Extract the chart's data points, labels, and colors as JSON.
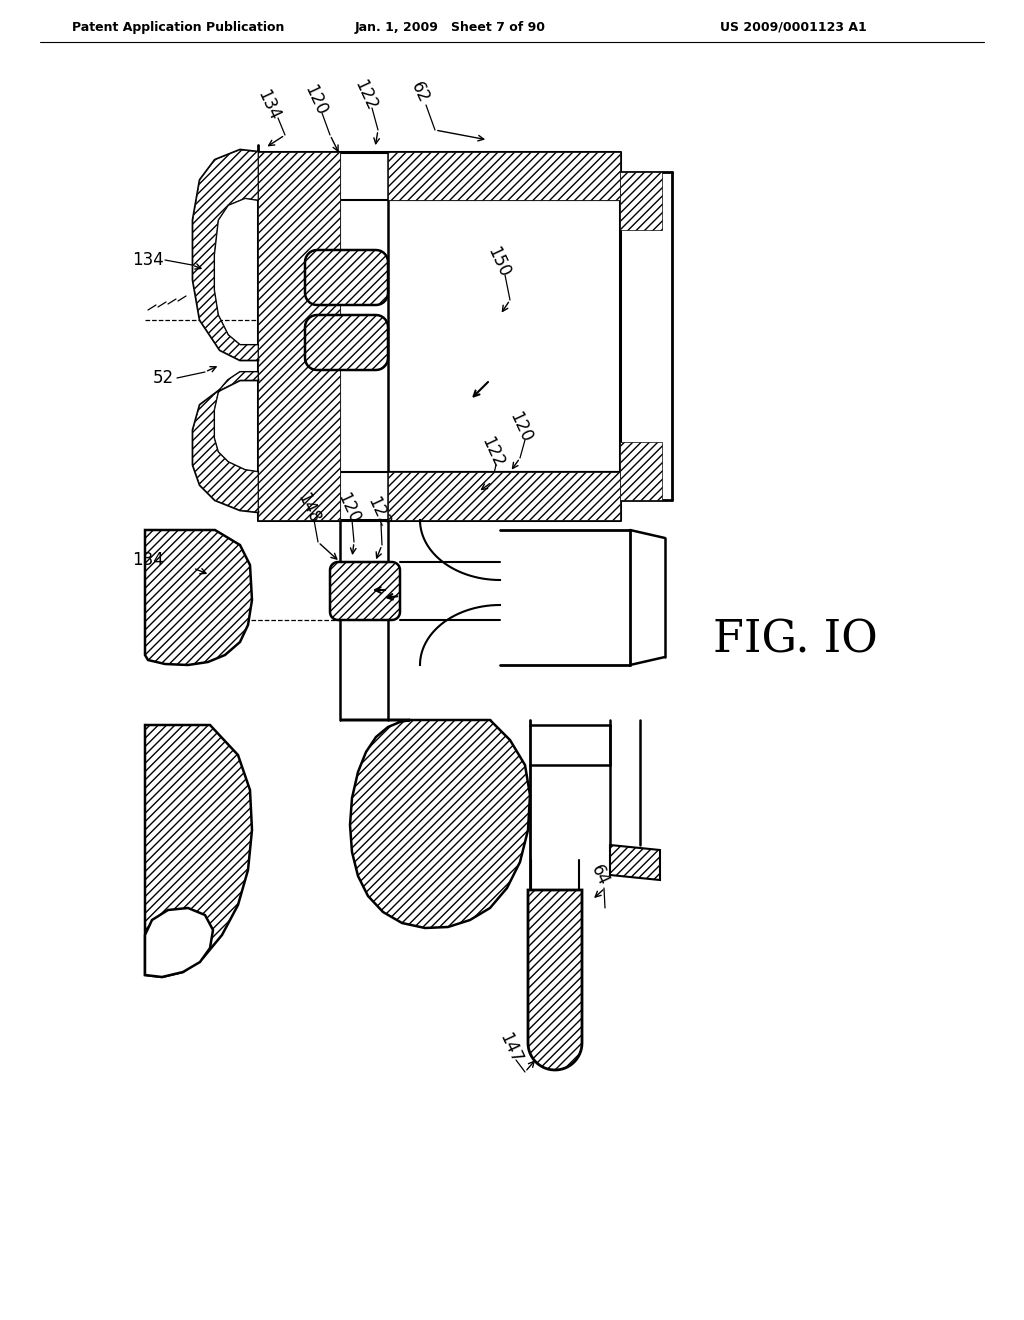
{
  "background_color": "#ffffff",
  "header_left": "Patent Application Publication",
  "header_center": "Jan. 1, 2009   Sheet 7 of 90",
  "header_right": "US 2009/0001123 A1",
  "figure_label": "FIG. IO"
}
